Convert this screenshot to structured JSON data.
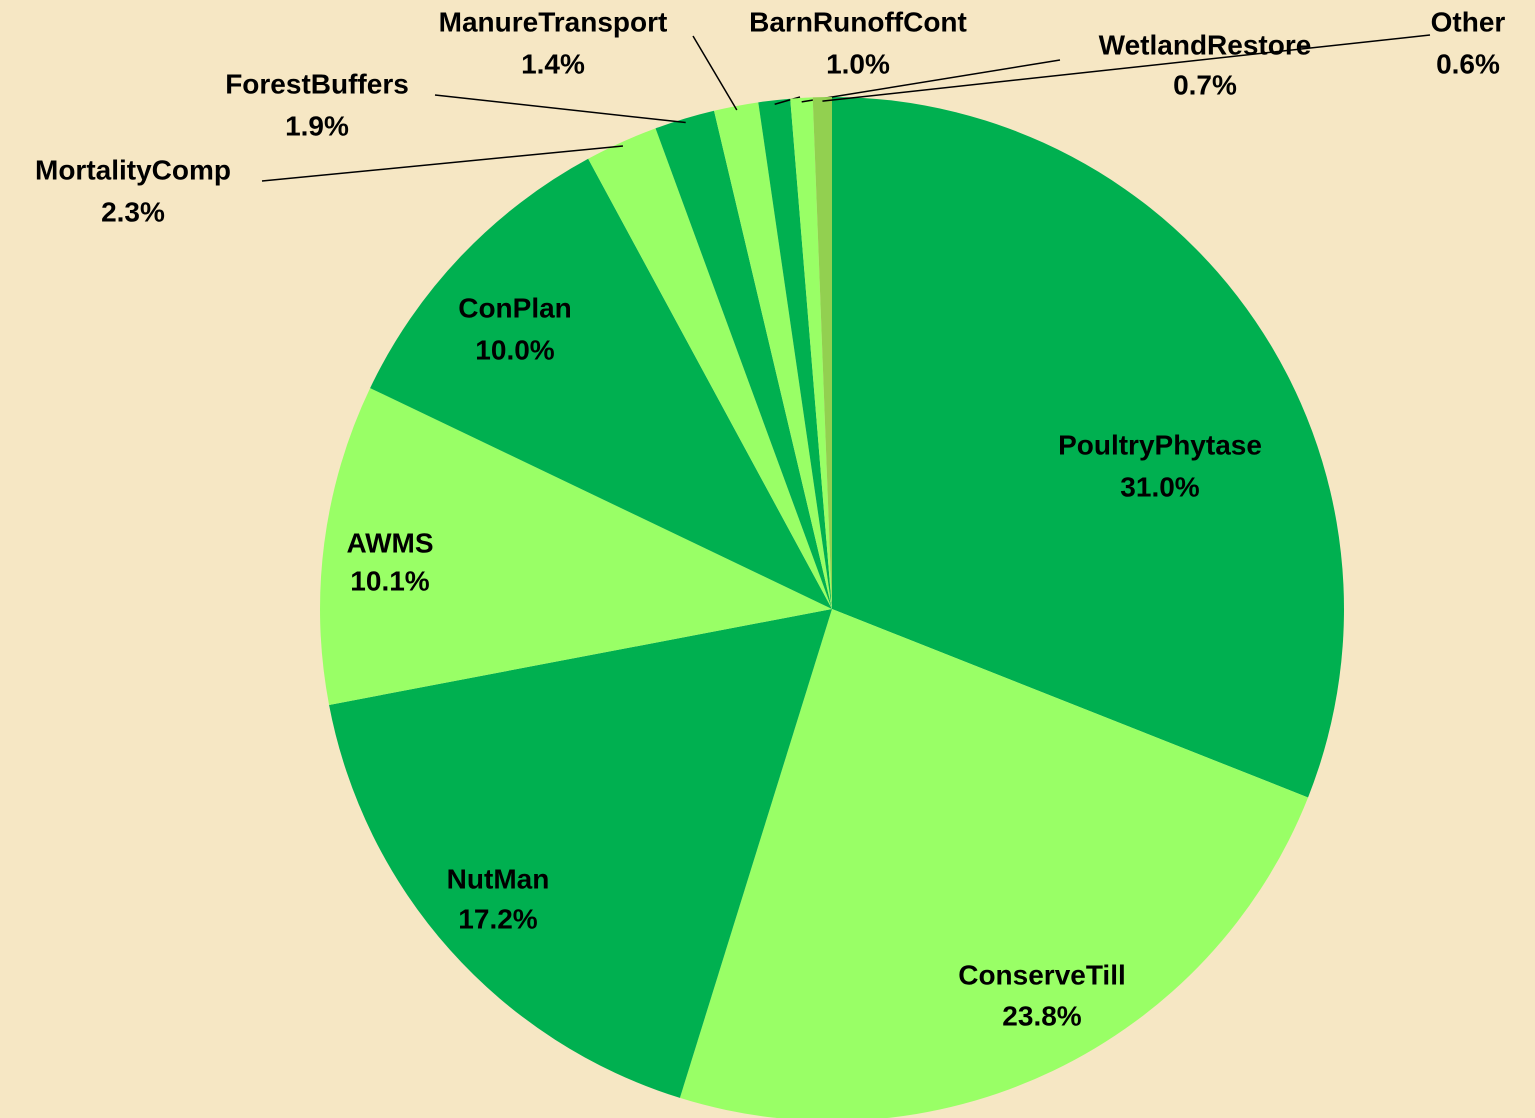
{
  "chart_data": {
    "type": "pie",
    "categories": [
      "PoultryPhytase",
      "ConserveTill",
      "NutMan",
      "AWMS",
      "ConPlan",
      "MortalityComp",
      "ForestBuffers",
      "ManureTransport",
      "BarnRunoffCont",
      "WetlandRestore",
      "Other"
    ],
    "values": [
      31.0,
      23.8,
      17.2,
      10.1,
      10.0,
      2.3,
      1.9,
      1.4,
      1.0,
      0.7,
      0.6
    ],
    "value_labels": [
      "31.0%",
      "23.8%",
      "17.2%",
      "10.1%",
      "10.0%",
      "2.3%",
      "1.9%",
      "1.4%",
      "1.0%",
      "0.7%",
      "0.6%"
    ],
    "colors": [
      "#00b050",
      "#99ff66",
      "#00b050",
      "#99ff66",
      "#00b050",
      "#99ff66",
      "#00b050",
      "#99ff66",
      "#00b050",
      "#99ff66",
      "#92d050"
    ]
  }
}
